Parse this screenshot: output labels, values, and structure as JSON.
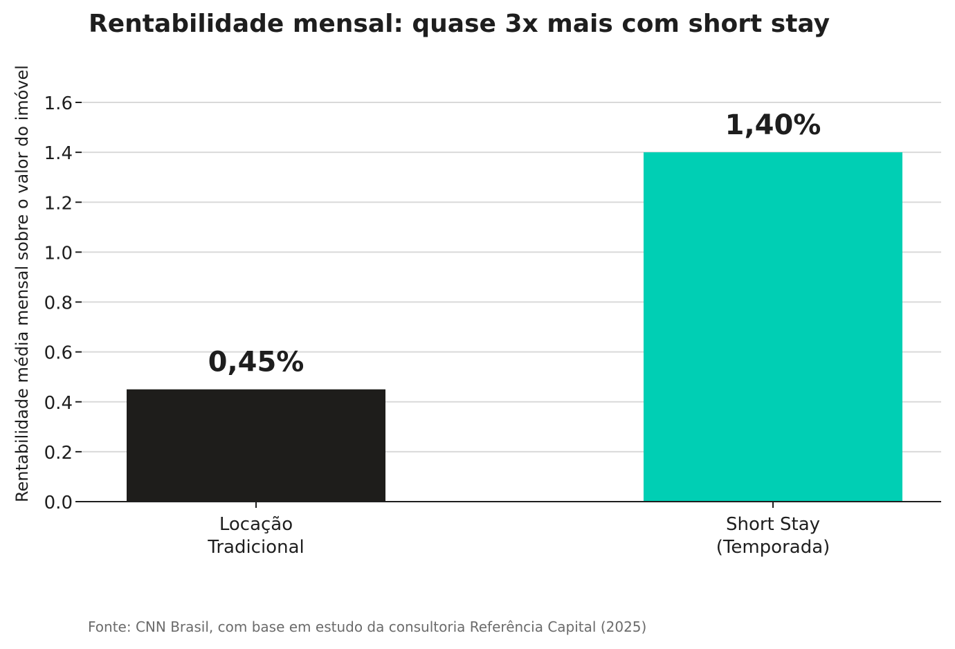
{
  "chart_data": {
    "type": "bar",
    "title": "Rentabilidade mensal: quase 3x mais com short stay",
    "ylabel": "Rentabilidade média mensal sobre o valor do imóvel",
    "xlabel": "",
    "categories": [
      "Locação\nTradicional",
      "Short Stay\n(Temporada)"
    ],
    "values": [
      0.45,
      1.4
    ],
    "data_labels": [
      "0,45%",
      "1,40%"
    ],
    "colors": [
      "#1e1d1b",
      "#00cfb4"
    ],
    "ylim": [
      0,
      1.6
    ],
    "yticks": [
      "0.0",
      "0.2",
      "0.4",
      "0.6",
      "0.8",
      "1.0",
      "1.2",
      "1.4",
      "1.6"
    ],
    "grid": true,
    "source": "Fonte: CNN Brasil, com base em estudo da consultoria Referência Capital (2025)"
  }
}
